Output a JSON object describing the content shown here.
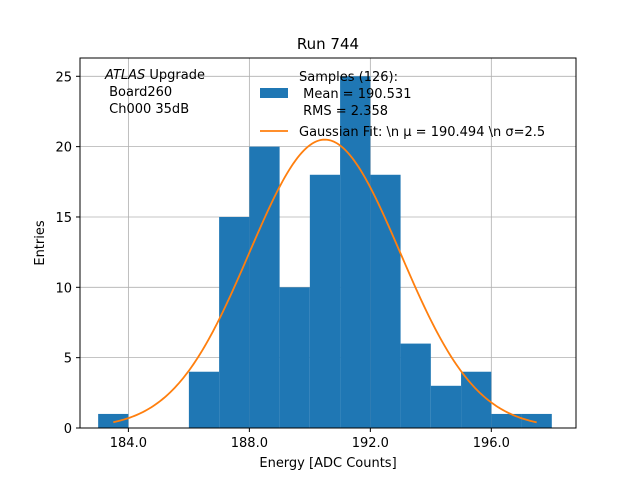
{
  "chart_data": {
    "type": "bar",
    "title": "Run 744",
    "xlabel": "Energy [ADC Counts]",
    "ylabel": "Entries",
    "xlim": [
      182.4,
      198.8
    ],
    "ylim": [
      0,
      26.3
    ],
    "xticks": [
      184,
      188,
      192,
      196
    ],
    "xtick_labels": [
      "184.0",
      "188.0",
      "192.0",
      "196.0"
    ],
    "yticks": [
      0,
      5,
      10,
      15,
      20,
      25
    ],
    "ytick_labels": [
      "0",
      "5",
      "10",
      "15",
      "20",
      "25"
    ],
    "grid": true,
    "bar_color": "#1f77b4",
    "fit_color": "#ff7f0e",
    "bins": [
      {
        "left": 183,
        "right": 184,
        "count": 1
      },
      {
        "left": 184,
        "right": 185,
        "count": 0
      },
      {
        "left": 185,
        "right": 186,
        "count": 0
      },
      {
        "left": 186,
        "right": 187,
        "count": 4
      },
      {
        "left": 187,
        "right": 188,
        "count": 15
      },
      {
        "left": 188,
        "right": 189,
        "count": 20
      },
      {
        "left": 189,
        "right": 190,
        "count": 10
      },
      {
        "left": 190,
        "right": 191,
        "count": 18
      },
      {
        "left": 191,
        "right": 192,
        "count": 25
      },
      {
        "left": 192,
        "right": 193,
        "count": 18
      },
      {
        "left": 193,
        "right": 194,
        "count": 6
      },
      {
        "left": 194,
        "right": 195,
        "count": 3
      },
      {
        "left": 195,
        "right": 196,
        "count": 4
      },
      {
        "left": 196,
        "right": 197,
        "count": 1
      },
      {
        "left": 197,
        "right": 198,
        "count": 1
      }
    ],
    "fit": {
      "type": "gaussian",
      "mu": 190.494,
      "sigma": 2.5,
      "amplitude": 20.5,
      "x_range": [
        183.5,
        197.5
      ]
    },
    "annotation_lines": [
      {
        "italic": "ATLAS",
        "normal": " Upgrade"
      },
      {
        "italic": "",
        "normal": " Board260"
      },
      {
        "italic": "",
        "normal": " Ch000 35dB"
      }
    ],
    "legend": {
      "position": "top-right",
      "bar_entry": [
        "Samples (126):",
        " Mean = 190.531",
        " RMS = 2.358"
      ],
      "fit_entry": "Gaussian Fit: \\n μ = 190.494 \\n σ=2.5"
    }
  }
}
